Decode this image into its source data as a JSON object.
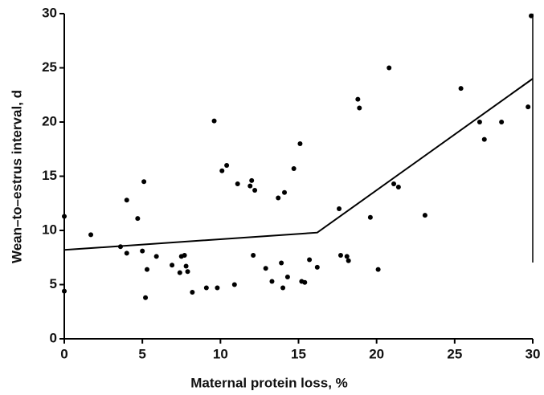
{
  "chart_data": {
    "type": "scatter",
    "x_label": "Maternal protein loss, %",
    "y_label": "Wean–to–estrus interval, d",
    "x": [
      0,
      0,
      1.7,
      3.6,
      4.0,
      4.0,
      4.7,
      5.0,
      5.1,
      5.2,
      5.3,
      5.9,
      6.9,
      7.4,
      7.5,
      7.7,
      7.8,
      7.9,
      8.2,
      9.1,
      9.6,
      9.8,
      10.1,
      10.4,
      10.9,
      11.1,
      11.9,
      12.0,
      12.1,
      12.2,
      12.9,
      13.3,
      13.7,
      13.9,
      14.0,
      14.1,
      14.3,
      14.7,
      15.1,
      15.2,
      15.4,
      15.7,
      16.2,
      17.6,
      17.7,
      18.1,
      18.2,
      18.8,
      18.9,
      19.6,
      20.1,
      20.8,
      21.1,
      21.4,
      23.1,
      25.4,
      26.6,
      26.9,
      28.0,
      29.7,
      29.9
    ],
    "values": [
      11.3,
      4.4,
      9.6,
      8.5,
      12.8,
      7.9,
      11.1,
      8.1,
      14.5,
      3.8,
      6.4,
      7.6,
      6.8,
      6.1,
      7.6,
      7.7,
      6.7,
      6.2,
      4.3,
      4.7,
      20.1,
      4.7,
      15.5,
      16.0,
      5.0,
      14.3,
      14.1,
      14.6,
      7.7,
      13.7,
      6.5,
      5.3,
      13.0,
      7.0,
      4.7,
      13.5,
      5.7,
      15.7,
      18.0,
      5.3,
      5.2,
      7.3,
      6.6,
      12.0,
      7.7,
      7.6,
      7.2,
      22.1,
      21.3,
      11.2,
      6.4,
      25.0,
      14.3,
      14.0,
      11.4,
      23.1,
      20.0,
      18.4,
      20.0,
      21.4,
      29.8
    ],
    "color": "#000000",
    "fit": {
      "x": [
        0,
        16.2,
        30
      ],
      "values": [
        8.2,
        9.8,
        24.0
      ]
    },
    "xlim": [
      0,
      30
    ],
    "ylim": [
      0,
      30
    ],
    "xticks": [
      0,
      5,
      10,
      15,
      20,
      25,
      30
    ],
    "yticks": [
      0,
      5,
      10,
      15,
      20,
      25,
      30
    ]
  }
}
